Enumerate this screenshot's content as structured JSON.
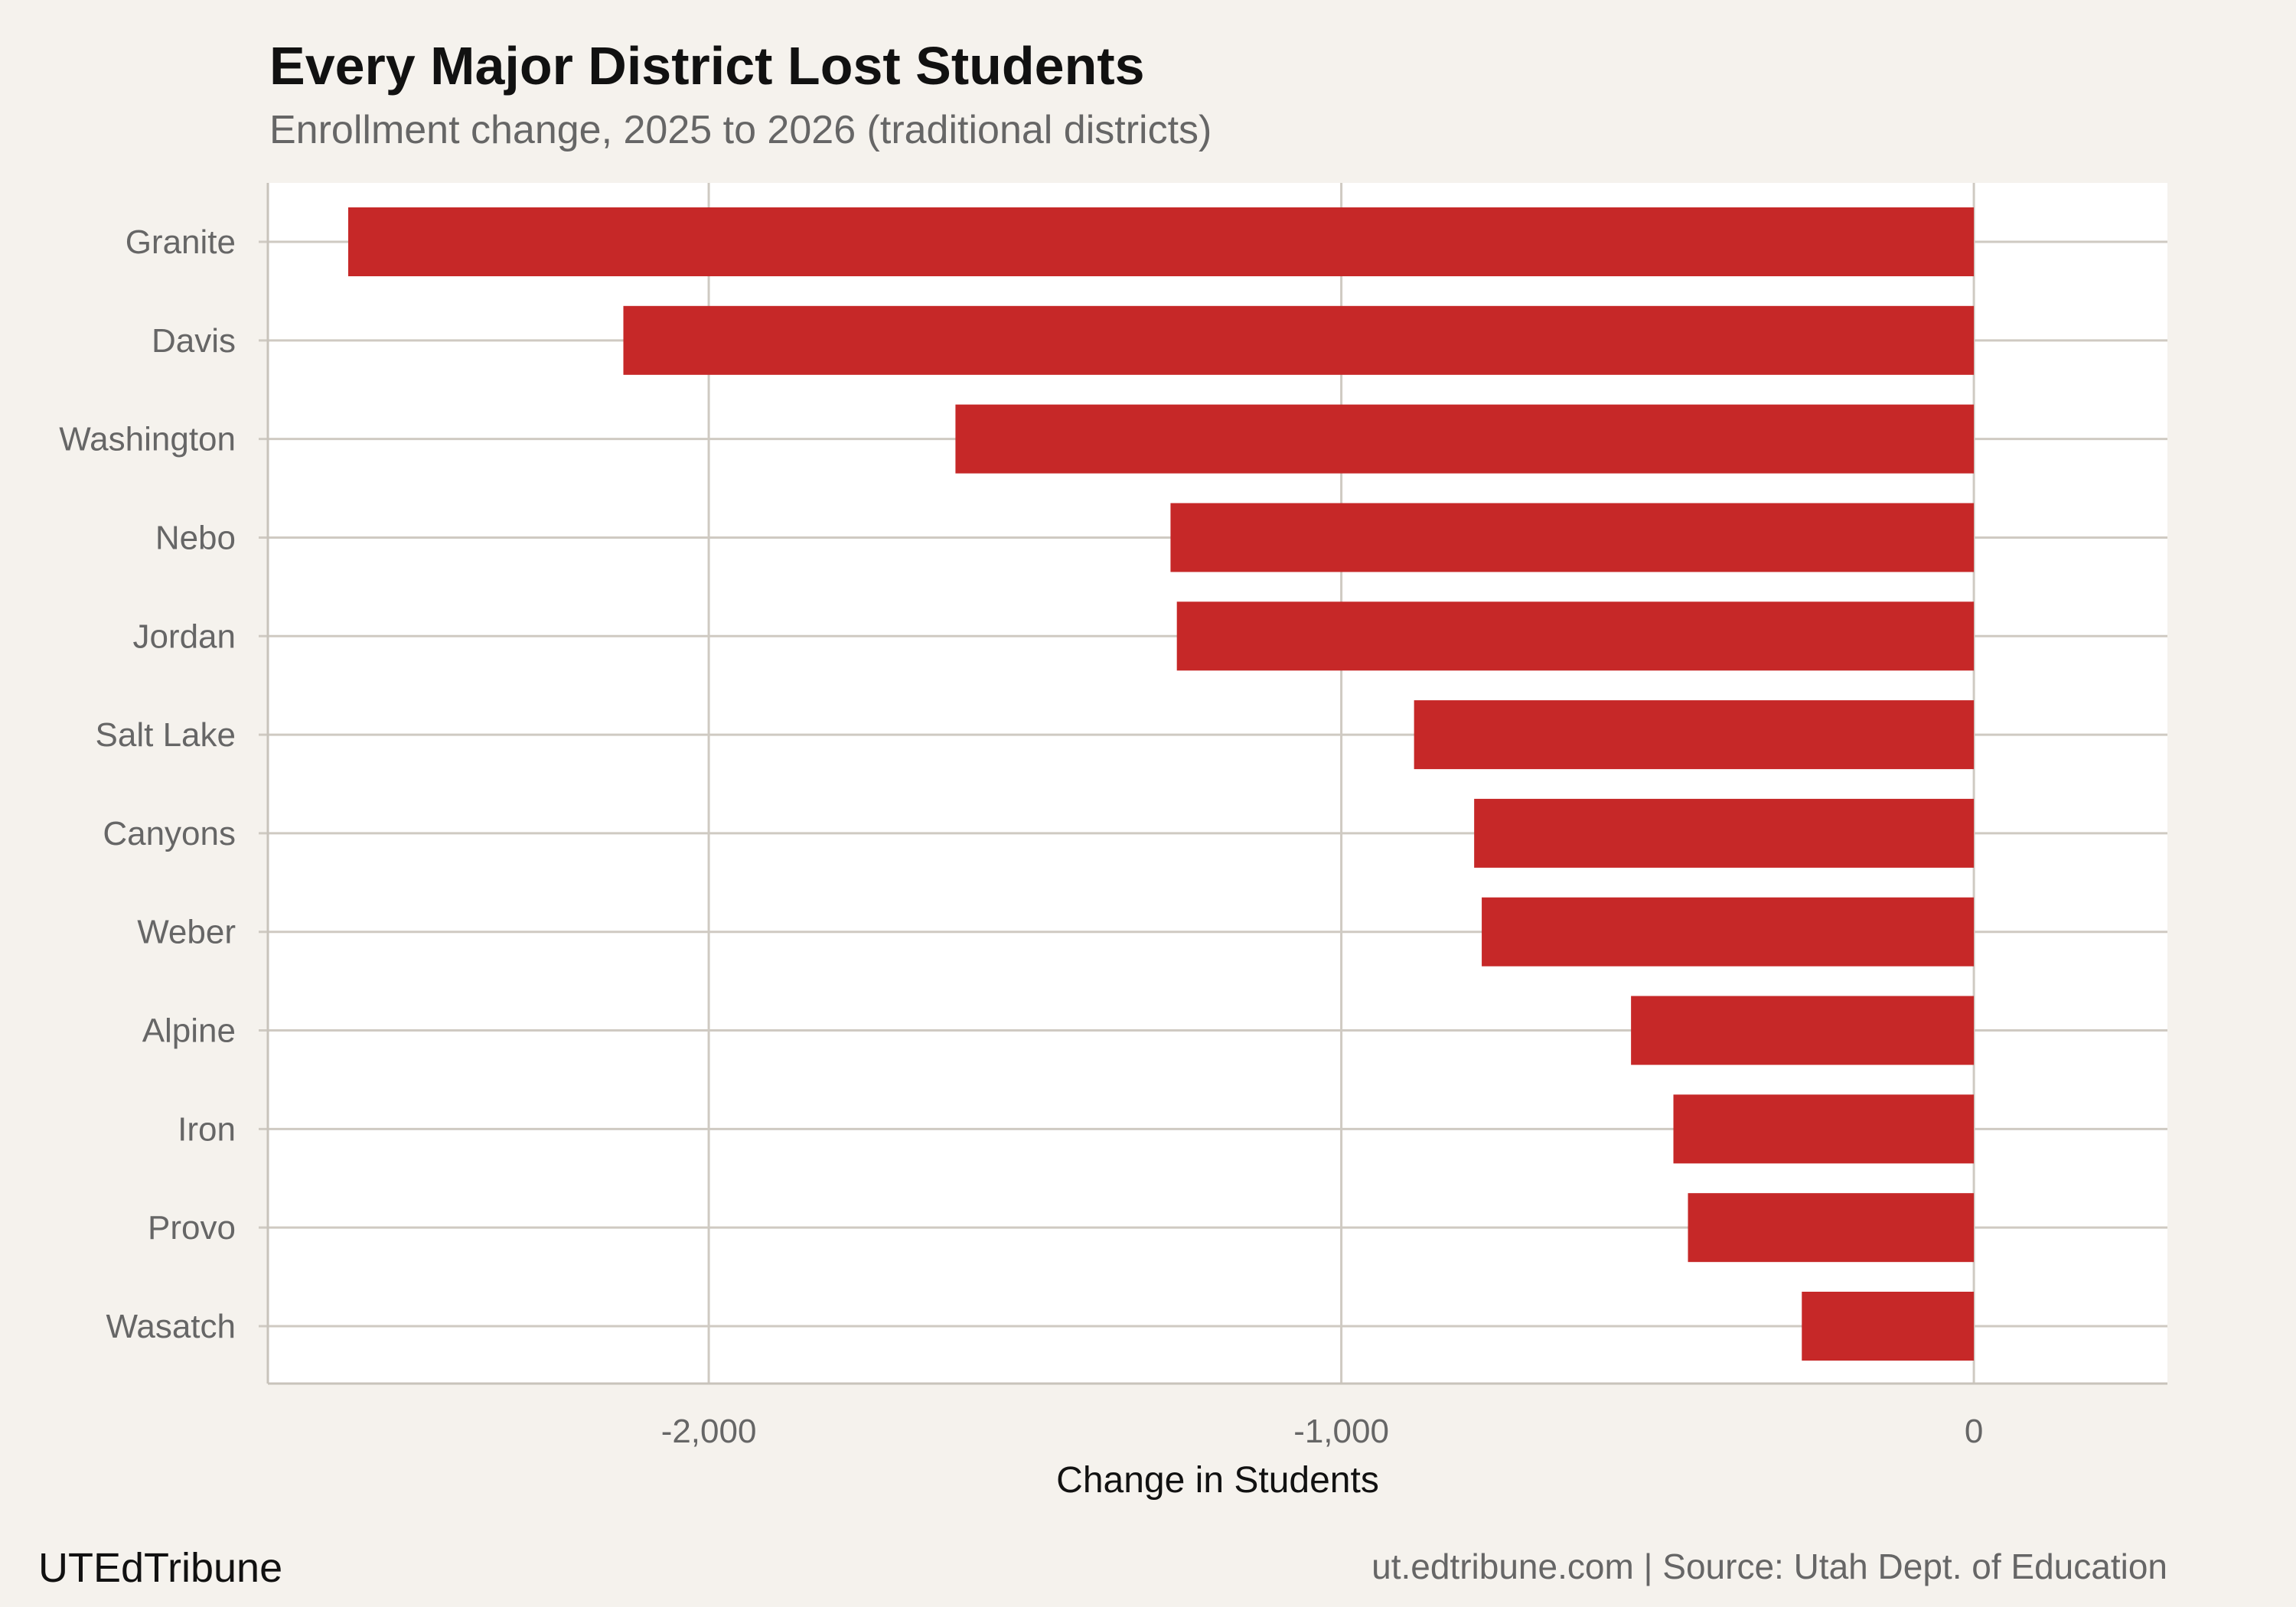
{
  "chart_data": {
    "type": "bar",
    "orientation": "horizontal",
    "title": "Every Major District Lost Students",
    "subtitle": "Enrollment change, 2025 to 2026 (traditional districts)",
    "xlabel": "Change in Students",
    "ylabel": "",
    "categories": [
      "Granite",
      "Davis",
      "Washington",
      "Nebo",
      "Jordan",
      "Salt Lake",
      "Canyons",
      "Weber",
      "Alpine",
      "Iron",
      "Provo",
      "Wasatch"
    ],
    "values": [
      -2570,
      -2135,
      -1610,
      -1270,
      -1260,
      -885,
      -790,
      -778,
      -542,
      -475,
      -452,
      -272
    ],
    "xlim": [
      -2697,
      306
    ],
    "xticks": [
      -2000,
      -1000,
      0
    ],
    "xtick_labels": [
      "-2,000",
      "-1,000",
      "0"
    ],
    "grid": true,
    "bar_color": "#c62828"
  },
  "footer": {
    "brand": "UTEdTribune",
    "caption": "ut.edtribune.com | Source: Utah Dept. of Education"
  }
}
